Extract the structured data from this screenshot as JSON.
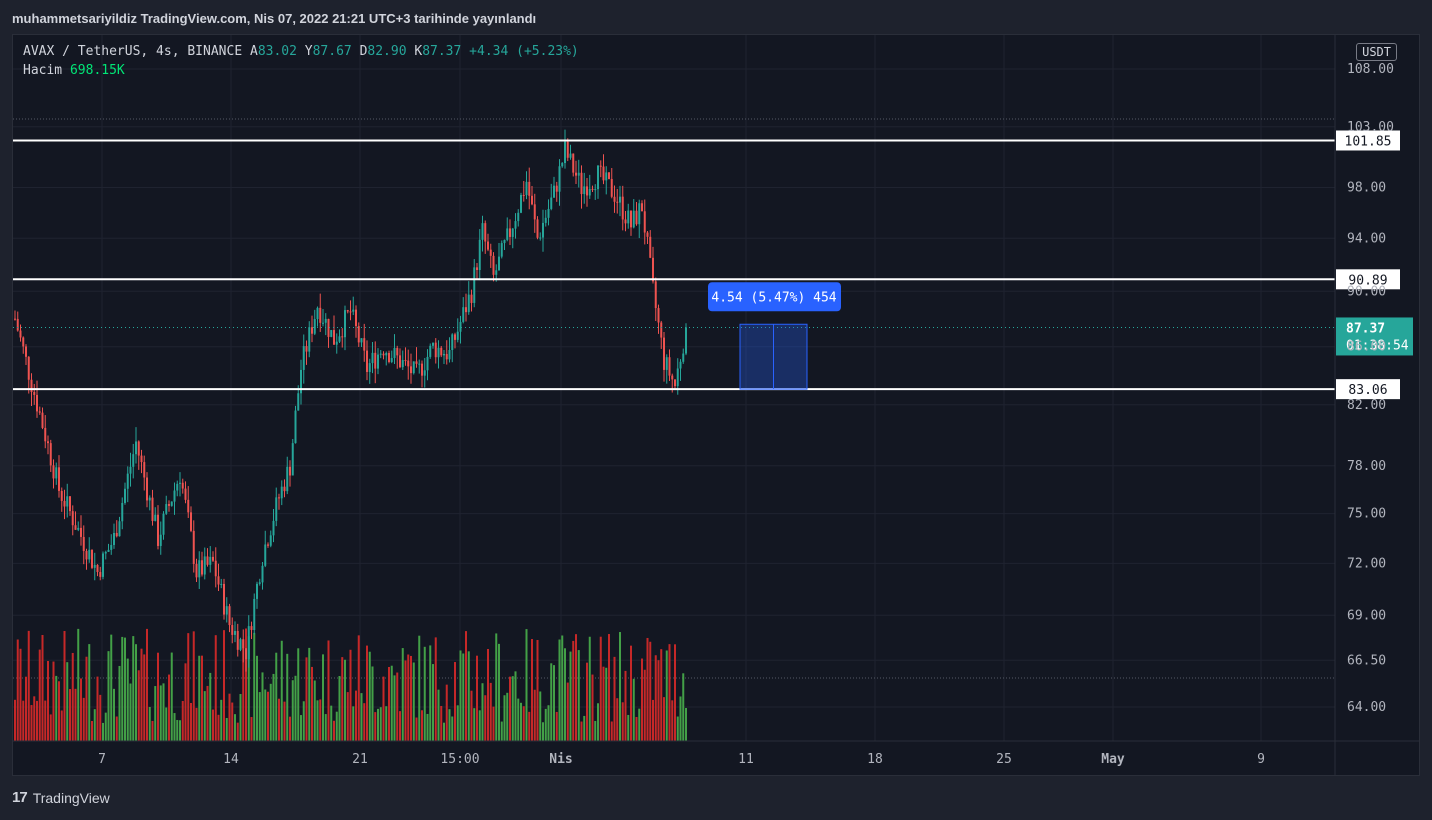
{
  "header": {
    "publish_line": "muhammetsariyildiz TradingView.com, Nis 07, 2022 21:21 UTC+3 tarihinde yayınlandı"
  },
  "legend": {
    "symbol": "AVAX / TetherUS, 4s, BINANCE",
    "o_label": "A",
    "o_value": "83.02",
    "h_label": "Y",
    "h_value": "87.67",
    "l_label": "D",
    "l_value": "82.90",
    "c_label": "K",
    "c_value": "87.37",
    "change": "+4.34 (+5.23%)",
    "volume_label": "Hacim",
    "volume_value": "698.15K"
  },
  "currency": "USDT",
  "footer": {
    "brand": "TradingView",
    "logo_glyph": "17"
  },
  "colors": {
    "up": "#26a69a",
    "down": "#ef5350",
    "vol_up": "#43a047",
    "vol_down": "#c62828",
    "measure": "#2962ff"
  },
  "chart_data": {
    "type": "candlestick",
    "y_axis": {
      "ticks": [
        108.0,
        103.0,
        98.0,
        94.0,
        90.0,
        86.0,
        82.0,
        78.0,
        75.0,
        72.0,
        69.0,
        66.5,
        64.0
      ],
      "tick_labels": [
        "108.00",
        "103.00",
        "98.00",
        "94.00",
        "90.00",
        "86.00",
        "82.00",
        "78.00",
        "75.00",
        "72.00",
        "69.00",
        "66.50",
        "64.00"
      ],
      "scale": "log"
    },
    "x_axis": {
      "tick_labels": [
        "7",
        "14",
        "21",
        "15:00",
        "Nis",
        "11",
        "18",
        "25",
        "May",
        "9"
      ],
      "bold_ticks": [
        "Nis",
        "May"
      ]
    },
    "horizontal_lines": [
      {
        "value": 101.85,
        "label": "101.85"
      },
      {
        "value": 90.89,
        "label": "90.89"
      },
      {
        "value": 83.06,
        "label": "83.06"
      }
    ],
    "last_price": {
      "value": 87.37,
      "label": "87.37",
      "countdown": "01:38:54"
    },
    "measure": {
      "from": 83.06,
      "to": 87.6,
      "label": "4.54 (5.47%) 454"
    },
    "key_points": [
      {
        "t": 0,
        "price": 88.0
      },
      {
        "t": 6,
        "price": 83.5
      },
      {
        "t": 16,
        "price": 76.5
      },
      {
        "t": 30,
        "price": 71.5
      },
      {
        "t": 36,
        "price": 73.5
      },
      {
        "t": 44,
        "price": 79.5
      },
      {
        "t": 52,
        "price": 73.5
      },
      {
        "t": 60,
        "price": 77.5
      },
      {
        "t": 66,
        "price": 71.5
      },
      {
        "t": 72,
        "price": 72.0
      },
      {
        "t": 78,
        "price": 68.5
      },
      {
        "t": 84,
        "price": 67.0
      },
      {
        "t": 90,
        "price": 72.5
      },
      {
        "t": 96,
        "price": 76.0
      },
      {
        "t": 100,
        "price": 78.0
      },
      {
        "t": 104,
        "price": 84.5
      },
      {
        "t": 110,
        "price": 89.0
      },
      {
        "t": 116,
        "price": 86.5
      },
      {
        "t": 122,
        "price": 88.5
      },
      {
        "t": 128,
        "price": 84.5
      },
      {
        "t": 134,
        "price": 86.0
      },
      {
        "t": 140,
        "price": 85.0
      },
      {
        "t": 146,
        "price": 84.0
      },
      {
        "t": 152,
        "price": 86.0
      },
      {
        "t": 158,
        "price": 85.5
      },
      {
        "t": 166,
        "price": 90.0
      },
      {
        "t": 170,
        "price": 94.5
      },
      {
        "t": 174,
        "price": 91.0
      },
      {
        "t": 180,
        "price": 94.5
      },
      {
        "t": 186,
        "price": 98.5
      },
      {
        "t": 190,
        "price": 94.0
      },
      {
        "t": 196,
        "price": 97.5
      },
      {
        "t": 200,
        "price": 101.0
      },
      {
        "t": 206,
        "price": 98.0
      },
      {
        "t": 212,
        "price": 99.0
      },
      {
        "t": 218,
        "price": 97.5
      },
      {
        "t": 224,
        "price": 95.0
      },
      {
        "t": 228,
        "price": 96.5
      },
      {
        "t": 232,
        "price": 90.0
      },
      {
        "t": 236,
        "price": 85.0
      },
      {
        "t": 240,
        "price": 83.3
      },
      {
        "t": 244,
        "price": 87.37
      }
    ]
  }
}
